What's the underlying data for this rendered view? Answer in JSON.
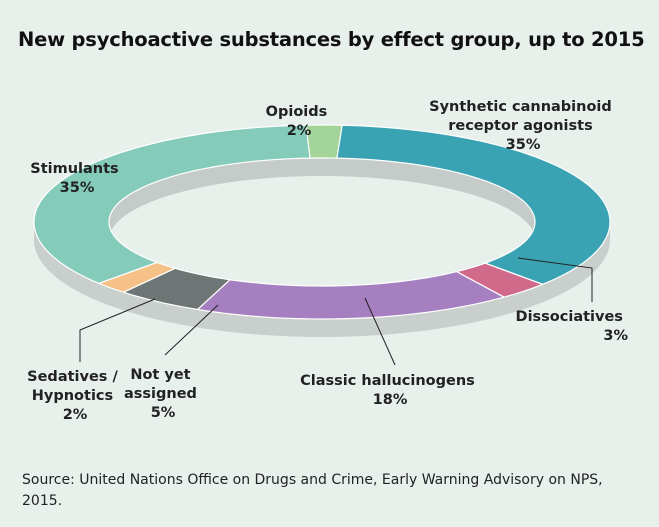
{
  "title": "New psychoactive substances by effect group, up to 2015",
  "source": "Source: United Nations Office on Drugs and Crime, Early Warning Advisory on NPS, 2015.",
  "chart_data": {
    "type": "pie",
    "title": "New psychoactive substances by effect group, up to 2015",
    "unit": "%",
    "slices": [
      {
        "label": "Synthetic cannabinoid receptor agonists",
        "value": 35,
        "value_text": "35%",
        "color": "#3aa3b3"
      },
      {
        "label": "Dissociatives",
        "value": 3,
        "value_text": "3%",
        "color": "#d0698a"
      },
      {
        "label": "Classic hallucinogens",
        "value": 18,
        "value_text": "18%",
        "color": "#a57fbf"
      },
      {
        "label": "Not yet assigned",
        "value": 5,
        "value_text": "5%",
        "color": "#6d7675"
      },
      {
        "label": "Sedatives / Hypnotics",
        "value": 2,
        "value_text": "2%",
        "color": "#f6c186"
      },
      {
        "label": "Stimulants",
        "value": 35,
        "value_text": "35%",
        "color": "#84cbba"
      },
      {
        "label": "Opioids",
        "value": 2,
        "value_text": "2%",
        "color": "#a3d49a"
      }
    ],
    "labels": {
      "synthetic": [
        "Synthetic cannabinoid",
        "receptor agonists",
        "35%"
      ],
      "dissociatives": [
        "Dissociatives",
        "3%"
      ],
      "hallucinogens": [
        "Classic hallucinogens",
        "18%"
      ],
      "not_assigned": [
        "Not yet",
        "assigned",
        "5%"
      ],
      "sedatives": [
        "Sedatives /",
        "Hypnotics",
        "2%"
      ],
      "stimulants": [
        "Stimulants",
        "35%"
      ],
      "opioids": [
        "Opioids",
        "2%"
      ]
    }
  }
}
